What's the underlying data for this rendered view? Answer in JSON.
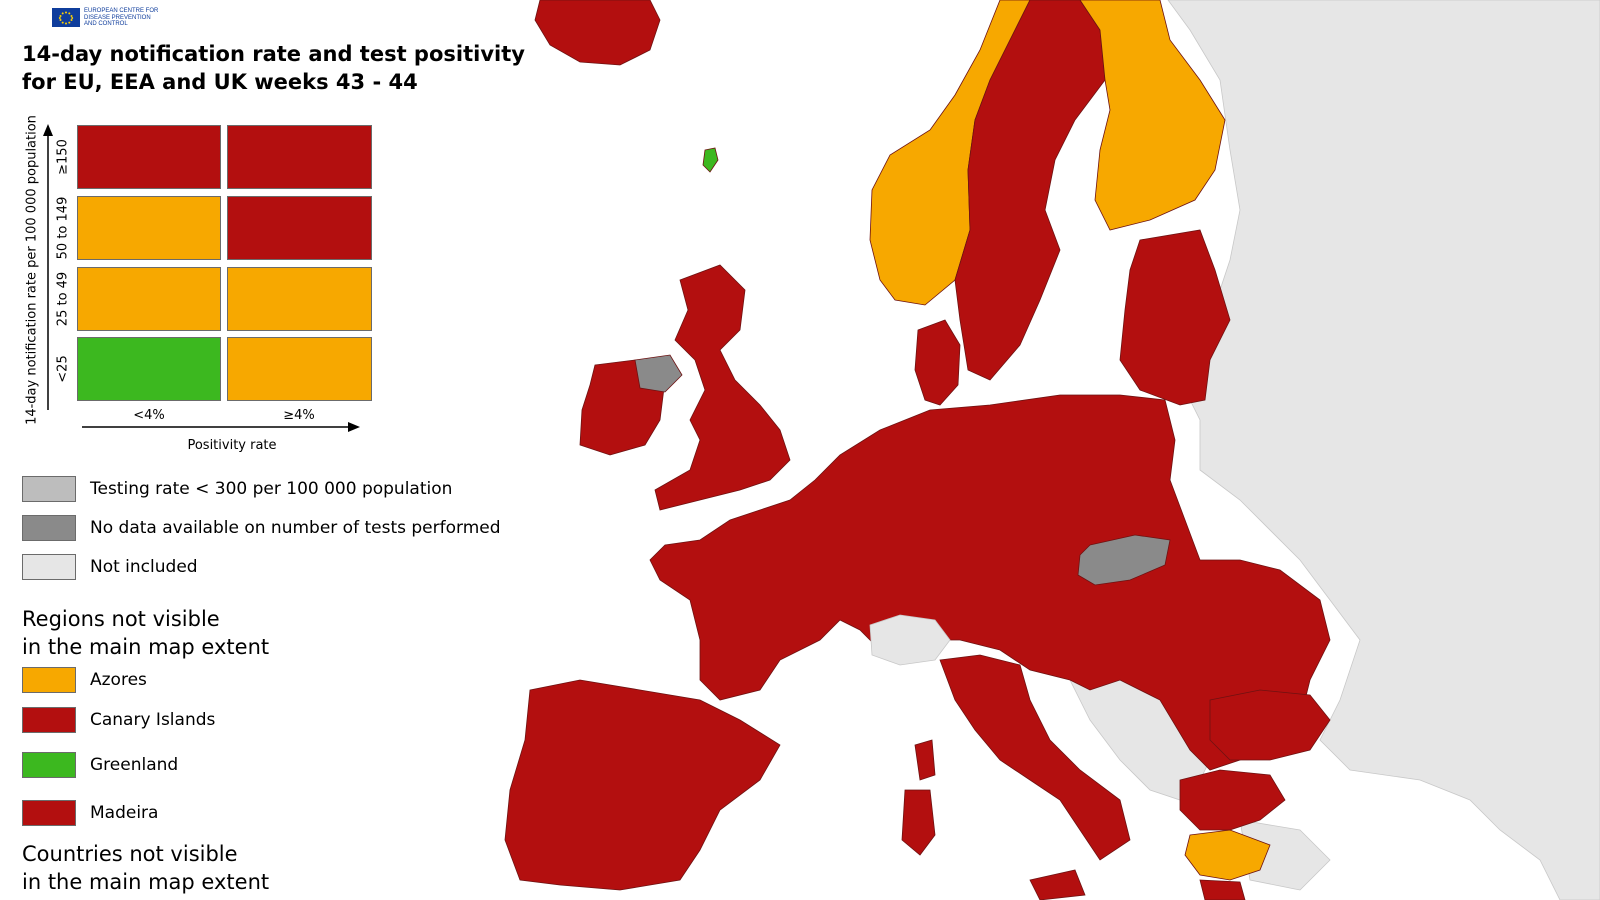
{
  "header": {
    "title_line1": "14-day notification rate and test positivity",
    "title_line2": "for EU, EEA and UK weeks 43 - 44",
    "logo_text_line1": "EUROPEAN CENTRE FOR",
    "logo_text_line2": "DISEASE PREVENTION",
    "logo_text_line3": "AND CONTROL"
  },
  "matrix": {
    "y_axis_label": "14-day notification rate per 100 000 population",
    "x_axis_label": "Positivity rate",
    "rows": [
      "≥150",
      "50 to 149",
      "25 to 49",
      "<25"
    ],
    "columns": [
      "<4%",
      "≥4%"
    ],
    "cell_colors": [
      [
        "#b30f0f",
        "#b30f0f"
      ],
      [
        "#f7a800",
        "#b30f0f"
      ],
      [
        "#f7a800",
        "#f7a800"
      ],
      [
        "#3cb81f",
        "#f7a800"
      ]
    ]
  },
  "legend": {
    "items": [
      {
        "label": "Testing rate < 300 per 100 000 population",
        "color": "#bdbdbd"
      },
      {
        "label": "No data available on number of tests performed",
        "color": "#8a8a8a"
      },
      {
        "label": "Not included",
        "color": "#e6e6e6"
      }
    ]
  },
  "regions_section": {
    "heading_line1": "Regions not visible",
    "heading_line2": "in the main map extent",
    "items": [
      {
        "label": "Azores",
        "color": "#f7a800"
      },
      {
        "label": "Canary Islands",
        "color": "#b30f0f"
      },
      {
        "label": "Greenland",
        "color": "#3cb81f"
      },
      {
        "label": "Madeira",
        "color": "#b30f0f"
      }
    ]
  },
  "countries_section": {
    "heading_line1": "Countries not visible",
    "heading_line2": "in the main map extent"
  },
  "colors": {
    "red": "#b30f0f",
    "orange": "#f7a800",
    "green": "#3cb81f",
    "testing_grey": "#bdbdbd",
    "nodata_grey": "#8a8a8a",
    "not_included": "#e6e6e6",
    "sea": "#ffffff",
    "border": "#6e1212"
  },
  "map": {
    "regions": [
      {
        "name": "Iceland",
        "color": "red"
      },
      {
        "name": "Norway",
        "color": "orange"
      },
      {
        "name": "Sweden",
        "color": "red"
      },
      {
        "name": "Finland",
        "color": "orange"
      },
      {
        "name": "Ireland",
        "color": "red"
      },
      {
        "name": "Northern Ireland",
        "color": "nodata_grey"
      },
      {
        "name": "Great Britain",
        "color": "red"
      },
      {
        "name": "Denmark",
        "color": "red"
      },
      {
        "name": "Baltic States",
        "color": "red"
      },
      {
        "name": "Continental EU",
        "color": "red"
      },
      {
        "name": "Slovakia",
        "color": "nodata_grey"
      },
      {
        "name": "Switzerland",
        "color": "not_included"
      },
      {
        "name": "Iberian Peninsula",
        "color": "red"
      },
      {
        "name": "Italy",
        "color": "red"
      },
      {
        "name": "Sardinia",
        "color": "red"
      },
      {
        "name": "Corsica",
        "color": "red"
      },
      {
        "name": "Sicily",
        "color": "red"
      },
      {
        "name": "Western Balkans",
        "color": "not_included"
      },
      {
        "name": "Eastern Europe",
        "color": "not_included"
      },
      {
        "name": "Bulgaria",
        "color": "red"
      },
      {
        "name": "Greece North",
        "color": "red"
      },
      {
        "name": "Greece Central",
        "color": "orange"
      },
      {
        "name": "Faroe Islands",
        "color": "green"
      }
    ]
  }
}
